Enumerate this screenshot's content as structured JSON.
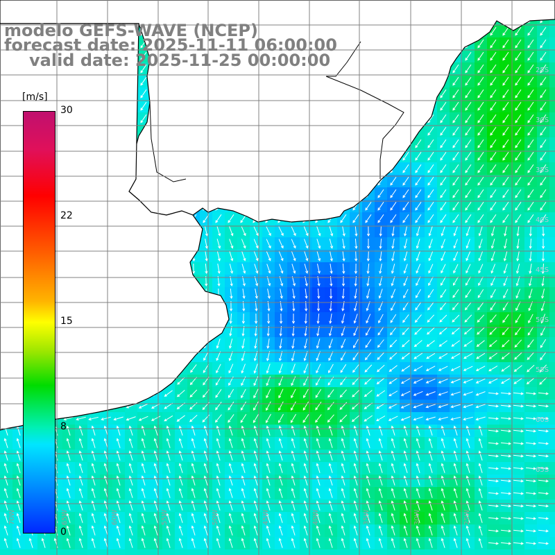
{
  "title": {
    "line1": "modelo GEFS-WAVE (NCEP)",
    "line2": "forecast date: 2025-11-11 06:00:00",
    "line3": "valid date: 2025-11-25 00:00:00"
  },
  "legend": {
    "unit": "[m/s]",
    "ticks": [
      "30",
      "22",
      "15",
      "8",
      "0"
    ],
    "min": 0,
    "max": 30
  },
  "axes": {
    "lon_labels": [
      "70W",
      "65W",
      "60W",
      "55W",
      "50W",
      "45W",
      "40W",
      "35W",
      "30W",
      "25W"
    ],
    "lat_labels": [
      "25S",
      "30S",
      "35S",
      "40S",
      "45S",
      "50S",
      "55S",
      "60S",
      "65S"
    ],
    "grid": true
  },
  "colors": {
    "land": "#ffffff",
    "coastline": "#000000",
    "grid": "#808080",
    "arrows": "#ffffff",
    "low_wind": "#0028ff",
    "mid_wind": "#00e6ff",
    "high_wind": "#00dc00"
  },
  "icons": {
    "wind_vector": "arrow-icon"
  }
}
